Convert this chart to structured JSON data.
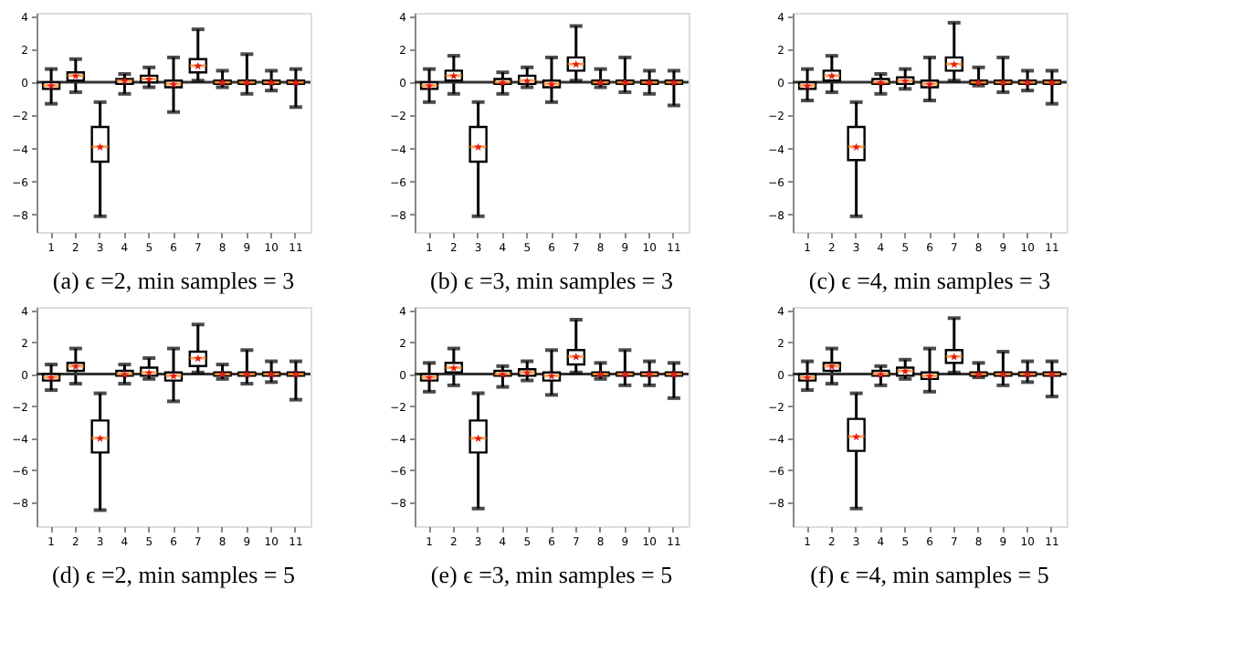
{
  "chart_data": [
    {
      "type": "box",
      "title": "(a) ϵ =2, min samples = 3",
      "categories": [
        "1",
        "2",
        "3",
        "4",
        "5",
        "6",
        "7",
        "8",
        "9",
        "10",
        "11"
      ],
      "ylim": [
        -9.05,
        4.2
      ],
      "yticks": [
        -8,
        -6,
        -4,
        -2,
        0,
        2,
        4
      ],
      "marker": "star",
      "grid": false,
      "ref_lines": [
        {
          "axis": "y",
          "value": 0,
          "color": "#333333"
        }
      ],
      "boxes": [
        {
          "low": -1.3,
          "q1": -0.4,
          "median": -0.2,
          "q3": 0.0,
          "high": 0.8,
          "mean": -0.2
        },
        {
          "low": -0.6,
          "q1": 0.1,
          "median": 0.4,
          "q3": 0.6,
          "high": 1.4,
          "mean": 0.4
        },
        {
          "low": -8.1,
          "q1": -4.8,
          "median": -3.9,
          "q3": -2.7,
          "high": -1.2,
          "mean": -3.9
        },
        {
          "low": -0.7,
          "q1": -0.1,
          "median": 0.1,
          "q3": 0.2,
          "high": 0.5,
          "mean": 0.1
        },
        {
          "low": -0.3,
          "q1": 0.0,
          "median": 0.2,
          "q3": 0.4,
          "high": 0.9,
          "mean": 0.2
        },
        {
          "low": -1.8,
          "q1": -0.3,
          "median": -0.1,
          "q3": 0.1,
          "high": 1.5,
          "mean": -0.1
        },
        {
          "low": 0.1,
          "q1": 0.6,
          "median": 1.0,
          "q3": 1.4,
          "high": 3.2,
          "mean": 1.0
        },
        {
          "low": -0.3,
          "q1": -0.1,
          "median": 0.0,
          "q3": 0.1,
          "high": 0.7,
          "mean": 0.0
        },
        {
          "low": -0.7,
          "q1": -0.1,
          "median": 0.0,
          "q3": 0.1,
          "high": 1.7,
          "mean": 0.0
        },
        {
          "low": -0.5,
          "q1": -0.1,
          "median": 0.0,
          "q3": 0.1,
          "high": 0.7,
          "mean": 0.0
        },
        {
          "low": -1.5,
          "q1": -0.1,
          "median": 0.0,
          "q3": 0.1,
          "high": 0.8,
          "mean": 0.0
        }
      ]
    },
    {
      "type": "box",
      "title": "(b) ϵ =3, min samples = 3",
      "categories": [
        "1",
        "2",
        "3",
        "4",
        "5",
        "6",
        "7",
        "8",
        "9",
        "10",
        "11"
      ],
      "ylim": [
        -9.05,
        4.2
      ],
      "yticks": [
        -8,
        -6,
        -4,
        -2,
        0,
        2,
        4
      ],
      "marker": "star",
      "grid": false,
      "ref_lines": [
        {
          "axis": "y",
          "value": 0,
          "color": "#333333"
        }
      ],
      "boxes": [
        {
          "low": -1.2,
          "q1": -0.4,
          "median": -0.2,
          "q3": 0.0,
          "high": 0.8,
          "mean": -0.2
        },
        {
          "low": -0.7,
          "q1": 0.1,
          "median": 0.4,
          "q3": 0.7,
          "high": 1.6,
          "mean": 0.4
        },
        {
          "low": -8.1,
          "q1": -4.8,
          "median": -3.9,
          "q3": -2.7,
          "high": -1.2,
          "mean": -3.9
        },
        {
          "low": -0.7,
          "q1": -0.1,
          "median": 0.0,
          "q3": 0.2,
          "high": 0.6,
          "mean": 0.0
        },
        {
          "low": -0.3,
          "q1": -0.1,
          "median": 0.1,
          "q3": 0.4,
          "high": 0.9,
          "mean": 0.1
        },
        {
          "low": -1.2,
          "q1": -0.3,
          "median": -0.1,
          "q3": 0.1,
          "high": 1.5,
          "mean": -0.1
        },
        {
          "low": 0.1,
          "q1": 0.7,
          "median": 1.1,
          "q3": 1.5,
          "high": 3.4,
          "mean": 1.1
        },
        {
          "low": -0.3,
          "q1": -0.1,
          "median": 0.0,
          "q3": 0.1,
          "high": 0.8,
          "mean": 0.0
        },
        {
          "low": -0.6,
          "q1": -0.1,
          "median": 0.0,
          "q3": 0.1,
          "high": 1.5,
          "mean": 0.0
        },
        {
          "low": -0.7,
          "q1": -0.1,
          "median": 0.0,
          "q3": 0.1,
          "high": 0.7,
          "mean": 0.0
        },
        {
          "low": -1.4,
          "q1": -0.1,
          "median": 0.0,
          "q3": 0.1,
          "high": 0.7,
          "mean": 0.0
        }
      ]
    },
    {
      "type": "box",
      "title": "(c) ϵ =4, min samples = 3",
      "categories": [
        "1",
        "2",
        "3",
        "4",
        "5",
        "6",
        "7",
        "8",
        "9",
        "10",
        "11"
      ],
      "ylim": [
        -9.05,
        4.2
      ],
      "yticks": [
        -8,
        -6,
        -4,
        -2,
        0,
        2,
        4
      ],
      "marker": "star",
      "grid": false,
      "ref_lines": [
        {
          "axis": "y",
          "value": 0,
          "color": "#333333"
        }
      ],
      "boxes": [
        {
          "low": -1.1,
          "q1": -0.4,
          "median": -0.2,
          "q3": 0.0,
          "high": 0.8,
          "mean": -0.2
        },
        {
          "low": -0.6,
          "q1": 0.1,
          "median": 0.4,
          "q3": 0.7,
          "high": 1.6,
          "mean": 0.4
        },
        {
          "low": -8.1,
          "q1": -4.7,
          "median": -3.9,
          "q3": -2.7,
          "high": -1.2,
          "mean": -3.9
        },
        {
          "low": -0.7,
          "q1": -0.1,
          "median": 0.0,
          "q3": 0.2,
          "high": 0.5,
          "mean": 0.0
        },
        {
          "low": -0.4,
          "q1": -0.1,
          "median": 0.1,
          "q3": 0.3,
          "high": 0.8,
          "mean": 0.1
        },
        {
          "low": -1.1,
          "q1": -0.3,
          "median": -0.1,
          "q3": 0.1,
          "high": 1.5,
          "mean": -0.1
        },
        {
          "low": 0.1,
          "q1": 0.7,
          "median": 1.1,
          "q3": 1.5,
          "high": 3.6,
          "mean": 1.1
        },
        {
          "low": -0.2,
          "q1": -0.1,
          "median": 0.0,
          "q3": 0.1,
          "high": 0.9,
          "mean": 0.0
        },
        {
          "low": -0.6,
          "q1": -0.1,
          "median": 0.0,
          "q3": 0.1,
          "high": 1.5,
          "mean": 0.0
        },
        {
          "low": -0.5,
          "q1": -0.1,
          "median": 0.0,
          "q3": 0.1,
          "high": 0.7,
          "mean": 0.0
        },
        {
          "low": -1.3,
          "q1": -0.1,
          "median": 0.0,
          "q3": 0.1,
          "high": 0.7,
          "mean": 0.0
        }
      ]
    },
    {
      "type": "box",
      "title": "(d) ϵ =2, min samples = 5",
      "categories": [
        "1",
        "2",
        "3",
        "4",
        "5",
        "6",
        "7",
        "8",
        "9",
        "10",
        "11"
      ],
      "ylim": [
        -9.5,
        4.2
      ],
      "yticks": [
        -8,
        -6,
        -4,
        -2,
        0,
        2,
        4
      ],
      "marker": "star",
      "grid": false,
      "ref_lines": [
        {
          "axis": "y",
          "value": 0,
          "color": "#333333"
        }
      ],
      "boxes": [
        {
          "low": -1.0,
          "q1": -0.4,
          "median": -0.2,
          "q3": 0.0,
          "high": 0.6,
          "mean": -0.2
        },
        {
          "low": -0.6,
          "q1": 0.2,
          "median": 0.5,
          "q3": 0.7,
          "high": 1.6,
          "mean": 0.5
        },
        {
          "low": -8.5,
          "q1": -4.9,
          "median": -4.0,
          "q3": -2.9,
          "high": -1.2,
          "mean": -4.0
        },
        {
          "low": -0.6,
          "q1": -0.1,
          "median": 0.0,
          "q3": 0.2,
          "high": 0.6,
          "mean": 0.0
        },
        {
          "low": -0.3,
          "q1": -0.1,
          "median": 0.1,
          "q3": 0.4,
          "high": 1.0,
          "mean": 0.1
        },
        {
          "low": -1.7,
          "q1": -0.4,
          "median": -0.1,
          "q3": 0.1,
          "high": 1.6,
          "mean": -0.1
        },
        {
          "low": 0.1,
          "q1": 0.5,
          "median": 1.0,
          "q3": 1.4,
          "high": 3.1,
          "mean": 1.0
        },
        {
          "low": -0.3,
          "q1": -0.1,
          "median": 0.0,
          "q3": 0.1,
          "high": 0.6,
          "mean": 0.0
        },
        {
          "low": -0.6,
          "q1": -0.1,
          "median": 0.0,
          "q3": 0.1,
          "high": 1.5,
          "mean": 0.0
        },
        {
          "low": -0.5,
          "q1": -0.1,
          "median": 0.0,
          "q3": 0.1,
          "high": 0.8,
          "mean": 0.0
        },
        {
          "low": -1.6,
          "q1": -0.1,
          "median": 0.0,
          "q3": 0.1,
          "high": 0.8,
          "mean": 0.0
        }
      ]
    },
    {
      "type": "box",
      "title": "(e) ϵ =3, min samples = 5",
      "categories": [
        "1",
        "2",
        "3",
        "4",
        "5",
        "6",
        "7",
        "8",
        "9",
        "10",
        "11"
      ],
      "ylim": [
        -9.5,
        4.2
      ],
      "yticks": [
        -8,
        -6,
        -4,
        -2,
        0,
        2,
        4
      ],
      "marker": "star",
      "grid": false,
      "ref_lines": [
        {
          "axis": "y",
          "value": 0,
          "color": "#333333"
        }
      ],
      "boxes": [
        {
          "low": -1.1,
          "q1": -0.4,
          "median": -0.2,
          "q3": 0.0,
          "high": 0.7,
          "mean": -0.2
        },
        {
          "low": -0.7,
          "q1": 0.1,
          "median": 0.4,
          "q3": 0.7,
          "high": 1.6,
          "mean": 0.4
        },
        {
          "low": -8.4,
          "q1": -4.9,
          "median": -4.0,
          "q3": -2.9,
          "high": -1.2,
          "mean": -4.0
        },
        {
          "low": -0.8,
          "q1": -0.1,
          "median": 0.0,
          "q3": 0.2,
          "high": 0.5,
          "mean": 0.0
        },
        {
          "low": -0.4,
          "q1": -0.1,
          "median": 0.1,
          "q3": 0.3,
          "high": 0.8,
          "mean": 0.1
        },
        {
          "low": -1.3,
          "q1": -0.4,
          "median": -0.1,
          "q3": 0.1,
          "high": 1.5,
          "mean": -0.1
        },
        {
          "low": 0.1,
          "q1": 0.6,
          "median": 1.1,
          "q3": 1.5,
          "high": 3.4,
          "mean": 1.1
        },
        {
          "low": -0.3,
          "q1": -0.1,
          "median": 0.0,
          "q3": 0.1,
          "high": 0.7,
          "mean": 0.0
        },
        {
          "low": -0.7,
          "q1": -0.1,
          "median": 0.0,
          "q3": 0.1,
          "high": 1.5,
          "mean": 0.0
        },
        {
          "low": -0.7,
          "q1": -0.1,
          "median": 0.0,
          "q3": 0.1,
          "high": 0.8,
          "mean": 0.0
        },
        {
          "low": -1.5,
          "q1": -0.1,
          "median": 0.0,
          "q3": 0.1,
          "high": 0.7,
          "mean": 0.0
        }
      ]
    },
    {
      "type": "box",
      "title": "(f) ϵ =4, min samples = 5",
      "categories": [
        "1",
        "2",
        "3",
        "4",
        "5",
        "6",
        "7",
        "8",
        "9",
        "10",
        "11"
      ],
      "ylim": [
        -9.5,
        4.2
      ],
      "yticks": [
        -8,
        -6,
        -4,
        -2,
        0,
        2,
        4
      ],
      "marker": "star",
      "grid": false,
      "ref_lines": [
        {
          "axis": "y",
          "value": 0,
          "color": "#333333"
        }
      ],
      "boxes": [
        {
          "low": -1.0,
          "q1": -0.4,
          "median": -0.2,
          "q3": 0.0,
          "high": 0.8,
          "mean": -0.2
        },
        {
          "low": -0.6,
          "q1": 0.2,
          "median": 0.5,
          "q3": 0.7,
          "high": 1.6,
          "mean": 0.5
        },
        {
          "low": -8.4,
          "q1": -4.8,
          "median": -3.9,
          "q3": -2.8,
          "high": -1.2,
          "mean": -3.9
        },
        {
          "low": -0.7,
          "q1": -0.1,
          "median": 0.0,
          "q3": 0.2,
          "high": 0.5,
          "mean": 0.0
        },
        {
          "low": -0.3,
          "q1": -0.1,
          "median": 0.2,
          "q3": 0.4,
          "high": 0.9,
          "mean": 0.2
        },
        {
          "low": -1.1,
          "q1": -0.3,
          "median": -0.1,
          "q3": 0.1,
          "high": 1.6,
          "mean": -0.1
        },
        {
          "low": 0.1,
          "q1": 0.7,
          "median": 1.1,
          "q3": 1.5,
          "high": 3.5,
          "mean": 1.1
        },
        {
          "low": -0.2,
          "q1": -0.1,
          "median": 0.0,
          "q3": 0.1,
          "high": 0.7,
          "mean": 0.0
        },
        {
          "low": -0.7,
          "q1": -0.1,
          "median": 0.0,
          "q3": 0.1,
          "high": 1.4,
          "mean": 0.0
        },
        {
          "low": -0.5,
          "q1": -0.1,
          "median": 0.0,
          "q3": 0.1,
          "high": 0.8,
          "mean": 0.0
        },
        {
          "low": -1.4,
          "q1": -0.1,
          "median": 0.0,
          "q3": 0.1,
          "high": 0.8,
          "mean": 0.0
        }
      ]
    }
  ]
}
